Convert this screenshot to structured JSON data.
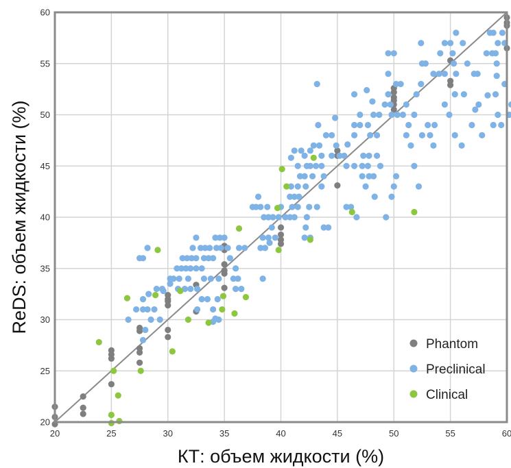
{
  "chart_data": {
    "type": "scatter",
    "title": "",
    "xlabel": "КТ: объем жидкости (%)",
    "ylabel": "ReDS: объем жидкости (%)",
    "xlim": [
      20,
      60
    ],
    "ylim": [
      20,
      60
    ],
    "xticks": [
      "20",
      "25",
      "30",
      "35",
      "40",
      "45",
      "50",
      "55",
      "60"
    ],
    "yticks": [
      "20",
      "25",
      "30",
      "35",
      "40",
      "45",
      "50",
      "55",
      "60"
    ],
    "grid": true,
    "identity_line": true,
    "legend_position": "bottom-right",
    "series": [
      {
        "name": "Phantom",
        "color": "#7f7f7f",
        "points": [
          [
            20,
            21.5
          ],
          [
            20,
            20.5
          ],
          [
            20,
            19.8
          ],
          [
            22.5,
            22.5
          ],
          [
            22.5,
            21.4
          ],
          [
            22.5,
            20.8
          ],
          [
            25,
            27
          ],
          [
            25,
            26.6
          ],
          [
            25,
            26.2
          ],
          [
            25,
            23.7
          ],
          [
            27.5,
            27.2
          ],
          [
            27.5,
            26.8
          ],
          [
            27.5,
            25.8
          ],
          [
            27.5,
            29.2
          ],
          [
            27.5,
            28.9
          ],
          [
            30,
            32.4
          ],
          [
            30,
            32
          ],
          [
            30,
            31.8
          ],
          [
            30,
            31.4
          ],
          [
            30,
            29
          ],
          [
            30,
            28.3
          ],
          [
            32.5,
            33.4
          ],
          [
            32.5,
            30.8
          ],
          [
            35,
            37.2
          ],
          [
            35,
            36.8
          ],
          [
            35,
            35.4
          ],
          [
            35,
            34.8
          ],
          [
            35,
            34.5
          ],
          [
            35,
            33.1
          ],
          [
            40,
            39
          ],
          [
            40,
            38.3
          ],
          [
            40,
            37.8
          ],
          [
            40,
            37.4
          ],
          [
            45,
            46.5
          ],
          [
            45,
            46
          ],
          [
            45,
            43.1
          ],
          [
            50,
            52.6
          ],
          [
            50,
            52.2
          ],
          [
            50,
            51.7
          ],
          [
            50,
            51.4
          ],
          [
            50,
            51
          ],
          [
            50,
            50.5
          ],
          [
            55,
            55.3
          ],
          [
            55,
            53.3
          ],
          [
            55,
            52.9
          ],
          [
            60,
            59.5
          ],
          [
            60,
            59
          ],
          [
            60,
            58.7
          ],
          [
            60,
            56.5
          ]
        ]
      },
      {
        "name": "Preclinical",
        "color": "#7fb2e5",
        "points": [
          [
            26.5,
            30
          ],
          [
            27.2,
            31
          ],
          [
            27.8,
            31
          ],
          [
            28.2,
            31
          ],
          [
            28.8,
            31
          ],
          [
            27.8,
            32
          ],
          [
            28.3,
            32.5
          ],
          [
            29,
            33
          ],
          [
            29.5,
            33
          ],
          [
            30.2,
            33.5
          ],
          [
            28.5,
            30
          ],
          [
            29.3,
            30
          ],
          [
            27.8,
            28
          ],
          [
            28,
            29
          ],
          [
            27.5,
            36
          ],
          [
            27.8,
            36
          ],
          [
            28.2,
            37
          ],
          [
            30.5,
            34
          ],
          [
            30.8,
            35
          ],
          [
            31.2,
            35
          ],
          [
            31.6,
            35
          ],
          [
            32,
            35
          ],
          [
            32.5,
            35
          ],
          [
            33,
            35
          ],
          [
            31.3,
            36
          ],
          [
            31.7,
            36
          ],
          [
            32.1,
            36
          ],
          [
            32.5,
            36
          ],
          [
            33.2,
            36
          ],
          [
            33.6,
            36
          ],
          [
            34,
            36
          ],
          [
            32.2,
            37
          ],
          [
            32.9,
            37
          ],
          [
            33.3,
            37
          ],
          [
            33.7,
            37
          ],
          [
            34.3,
            37
          ],
          [
            34.7,
            37
          ],
          [
            35.3,
            37
          ],
          [
            32.5,
            38
          ],
          [
            34.2,
            38
          ],
          [
            34.6,
            38
          ],
          [
            35,
            38
          ],
          [
            31,
            34
          ],
          [
            31.8,
            34
          ],
          [
            33.2,
            34
          ],
          [
            33.8,
            34
          ],
          [
            34.5,
            34
          ],
          [
            35.8,
            34
          ],
          [
            30.2,
            34
          ],
          [
            29.6,
            32.8
          ],
          [
            30.9,
            33
          ],
          [
            31.5,
            33
          ],
          [
            32,
            33
          ],
          [
            32.6,
            33
          ],
          [
            33,
            32
          ],
          [
            33.5,
            32
          ],
          [
            34.4,
            32
          ],
          [
            32.6,
            31
          ],
          [
            34,
            31
          ],
          [
            34.5,
            30
          ],
          [
            34,
            29.8
          ],
          [
            34.2,
            30.1
          ],
          [
            35.5,
            36
          ],
          [
            36,
            35
          ],
          [
            36.2,
            34
          ],
          [
            36.5,
            33
          ],
          [
            36,
            33
          ],
          [
            36.3,
            37
          ],
          [
            36.8,
            37
          ],
          [
            37.5,
            41
          ],
          [
            37.8,
            41
          ],
          [
            38.2,
            41
          ],
          [
            38.8,
            41
          ],
          [
            38,
            42
          ],
          [
            38.5,
            40
          ],
          [
            38.9,
            40
          ],
          [
            39.2,
            39
          ],
          [
            39.3,
            40
          ],
          [
            39.8,
            40
          ],
          [
            38.4,
            38
          ],
          [
            38.9,
            38
          ],
          [
            38.2,
            37
          ],
          [
            38.6,
            37
          ],
          [
            38.4,
            34
          ],
          [
            39,
            37.5
          ],
          [
            39.5,
            38
          ],
          [
            40.4,
            40
          ],
          [
            40.8,
            40
          ],
          [
            41.2,
            40
          ],
          [
            41,
            41
          ],
          [
            41.5,
            41
          ],
          [
            40.8,
            42
          ],
          [
            41.2,
            42
          ],
          [
            41.6,
            42
          ],
          [
            40.9,
            43
          ],
          [
            41.5,
            43
          ],
          [
            42.2,
            43
          ],
          [
            41.7,
            44
          ],
          [
            42.1,
            44
          ],
          [
            42.8,
            44
          ],
          [
            41.5,
            45
          ],
          [
            42.3,
            45
          ],
          [
            42.6,
            45
          ],
          [
            43.1,
            45
          ],
          [
            43.6,
            45
          ],
          [
            42.1,
            46
          ],
          [
            41.2,
            46.5
          ],
          [
            41.8,
            46.5
          ],
          [
            42.6,
            46.5
          ],
          [
            42.9,
            47
          ],
          [
            43.4,
            47
          ],
          [
            43.6,
            46
          ],
          [
            42.5,
            41
          ],
          [
            43.2,
            41
          ],
          [
            42.3,
            40
          ],
          [
            42.2,
            39
          ],
          [
            42.6,
            38
          ],
          [
            42.1,
            38
          ],
          [
            43.8,
            39
          ],
          [
            44.2,
            39
          ],
          [
            43.8,
            44
          ],
          [
            43.6,
            43
          ],
          [
            43.3,
            49
          ],
          [
            44,
            48
          ],
          [
            44.5,
            48
          ],
          [
            44.9,
            47
          ],
          [
            44.5,
            46
          ],
          [
            45.2,
            46
          ],
          [
            45.6,
            46
          ],
          [
            45.8,
            45
          ],
          [
            46.5,
            45
          ],
          [
            47.2,
            45
          ],
          [
            47.7,
            45
          ],
          [
            47.2,
            44
          ],
          [
            47.8,
            44
          ],
          [
            46.5,
            49
          ],
          [
            47,
            49
          ],
          [
            47.7,
            49
          ],
          [
            47.9,
            48
          ],
          [
            48.5,
            48
          ],
          [
            47.3,
            46
          ],
          [
            47.8,
            46
          ],
          [
            48.5,
            46
          ],
          [
            48.8,
            45
          ],
          [
            48.2,
            44
          ],
          [
            48.3,
            42
          ],
          [
            47.5,
            43
          ],
          [
            46.7,
            40
          ],
          [
            46.2,
            41
          ],
          [
            45.8,
            41
          ],
          [
            46.5,
            48
          ],
          [
            47,
            50
          ],
          [
            46.5,
            52
          ],
          [
            48.2,
            50
          ],
          [
            48.7,
            50
          ],
          [
            49.2,
            51
          ],
          [
            49.7,
            51
          ],
          [
            49.8,
            50
          ],
          [
            50.3,
            50
          ],
          [
            50.8,
            50
          ],
          [
            51.1,
            51
          ],
          [
            49.5,
            52
          ],
          [
            50.2,
            53
          ],
          [
            50.6,
            53
          ],
          [
            49.5,
            54
          ],
          [
            49.5,
            56
          ],
          [
            50,
            56
          ],
          [
            51.3,
            49
          ],
          [
            51.1,
            48
          ],
          [
            51.5,
            47
          ],
          [
            51.8,
            50
          ],
          [
            52,
            52
          ],
          [
            52.4,
            53
          ],
          [
            52.5,
            55
          ],
          [
            52.8,
            55
          ],
          [
            52.4,
            57
          ],
          [
            53.5,
            54
          ],
          [
            54,
            54
          ],
          [
            54.5,
            54
          ],
          [
            54.1,
            56
          ],
          [
            54.5,
            57
          ],
          [
            55,
            57
          ],
          [
            55.2,
            56
          ],
          [
            55.5,
            58
          ],
          [
            55.5,
            54
          ],
          [
            55.4,
            52
          ],
          [
            56.1,
            57
          ],
          [
            56.5,
            55
          ],
          [
            57.1,
            54
          ],
          [
            57.4,
            54
          ],
          [
            58.2,
            56
          ],
          [
            58.7,
            56
          ],
          [
            59,
            56
          ],
          [
            59.1,
            55
          ],
          [
            59.2,
            57
          ],
          [
            59.6,
            58
          ],
          [
            59.8,
            57
          ],
          [
            58.5,
            58
          ],
          [
            58.8,
            58
          ],
          [
            59,
            52
          ],
          [
            59.8,
            53
          ],
          [
            59.2,
            50
          ],
          [
            59.5,
            49
          ],
          [
            60.2,
            50
          ],
          [
            60.4,
            51
          ],
          [
            58.8,
            49
          ],
          [
            57.5,
            51
          ],
          [
            57.2,
            50.5
          ],
          [
            56.9,
            49
          ],
          [
            56,
            47
          ],
          [
            55.4,
            48
          ],
          [
            54.5,
            51
          ],
          [
            54.9,
            50
          ],
          [
            53,
            49
          ],
          [
            53.2,
            48
          ],
          [
            53.5,
            47
          ],
          [
            51.8,
            45
          ],
          [
            50.2,
            44
          ],
          [
            50,
            43
          ],
          [
            49.8,
            42
          ],
          [
            49.3,
            40
          ],
          [
            52.2,
            43
          ],
          [
            52.5,
            48
          ],
          [
            53.6,
            49
          ],
          [
            55.3,
            55
          ],
          [
            56.2,
            52
          ],
          [
            57.8,
            48
          ],
          [
            59.1,
            53.8
          ],
          [
            58.3,
            51.9
          ],
          [
            48.1,
            51.3
          ],
          [
            47.6,
            52.4
          ],
          [
            45.9,
            47.1
          ],
          [
            44.8,
            49.7
          ],
          [
            43.2,
            53
          ],
          [
            40.9,
            45.8
          ],
          [
            40,
            41
          ]
        ]
      },
      {
        "name": "Clinical",
        "color": "#8dc63f",
        "points": [
          [
            23.9,
            27.8
          ],
          [
            25,
            19.9
          ],
          [
            25,
            20.7
          ],
          [
            25.2,
            25
          ],
          [
            25.6,
            22.6
          ],
          [
            25.7,
            20.1
          ],
          [
            26.4,
            32.1
          ],
          [
            27.6,
            25
          ],
          [
            28.9,
            32.4
          ],
          [
            29.1,
            36.8
          ],
          [
            30.4,
            26.9
          ],
          [
            31.1,
            32.8
          ],
          [
            31.8,
            30
          ],
          [
            33.6,
            29.7
          ],
          [
            34.8,
            31
          ],
          [
            34.9,
            32.3
          ],
          [
            35.9,
            30.6
          ],
          [
            36.3,
            38.9
          ],
          [
            36.9,
            32.2
          ],
          [
            39.8,
            36.8
          ],
          [
            39.7,
            40.9
          ],
          [
            40.1,
            44.7
          ],
          [
            40.5,
            43
          ],
          [
            42.6,
            37.8
          ],
          [
            42.9,
            45.8
          ],
          [
            46.3,
            40.5
          ],
          [
            51.8,
            40.5
          ]
        ]
      }
    ]
  }
}
